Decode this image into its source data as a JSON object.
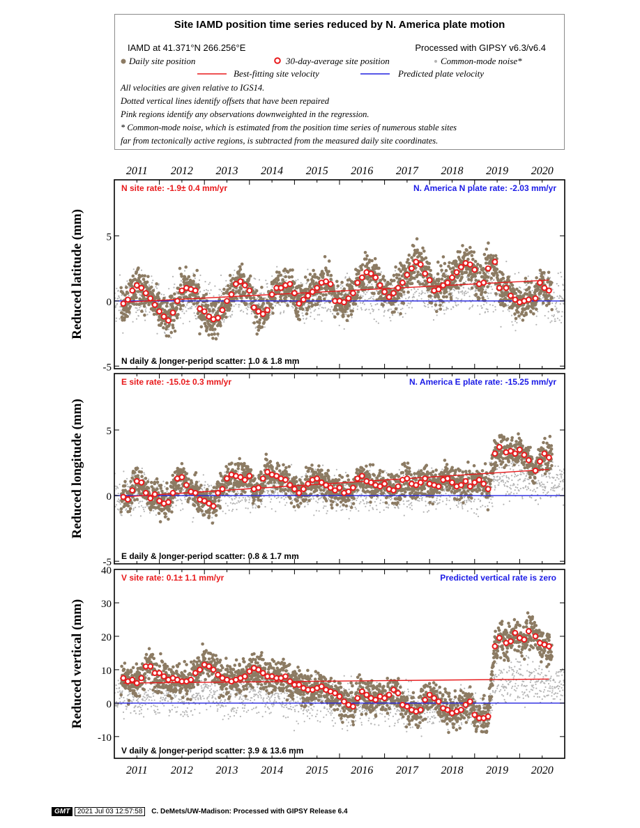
{
  "legend": {
    "title": "Site IAMD position time series reduced by N. America plate motion",
    "site_line": "IAMD at 41.371°N 266.256°E",
    "processed": "Processed with GIPSY v6.3/v6.4",
    "items": {
      "daily": "Daily site position",
      "avg": "30-day-average site position",
      "cm": "Common-mode noise*",
      "best": "Best-fitting site velocity",
      "pred": "Predicted plate velocity"
    },
    "notes": [
      "All velocities are given relative to IGS14.",
      "Dotted vertical lines identify offsets that have been repaired",
      "Pink regions identify any observations downweighted in the regression.",
      "* Common-mode noise, which is estimated from the position time series of numerous stable sites",
      "far from tectonically active regions, is subtracted from the measured daily site coordinates."
    ]
  },
  "footer": {
    "logo": "GMT",
    "timestamp": "2021 Jul 03 12:57:58",
    "credit": "C. DeMets/UW-Madison: Processed with GIPSY Release 6.4"
  },
  "colors": {
    "daily": "#8c7b63",
    "average": "#e8191b",
    "commonmode": "#b4b4b4",
    "best": "#e8191b",
    "predicted": "#2020e0",
    "rate_label": "#e8191b",
    "plate_label": "#1a1ae6"
  },
  "chart_data": [
    {
      "type": "scatter",
      "component": "N",
      "ylabel": "Reduced latitude (mm)",
      "site_rate": "N site rate:  -1.9± 0.4 mm/yr",
      "plate_rate": "N. America N plate rate: -2.03 mm/yr",
      "scatter": "N daily & longer-period scatter:   1.0 &   1.8 mm",
      "x_ticks": [
        "2011",
        "2012",
        "2013",
        "2014",
        "2015",
        "2016",
        "2017",
        "2018",
        "2019",
        "2020"
      ],
      "xlim": [
        2010.5,
        2020.5
      ],
      "ylim": [
        -5.2,
        9.3
      ],
      "y_ticks": [
        -5,
        0,
        5
      ],
      "y_tick_labels": [
        "-5",
        "0",
        "5"
      ],
      "best_fit": {
        "x": [
          2010.7,
          2020.15
        ],
        "y": [
          -0.1,
          1.6
        ]
      },
      "predicted": {
        "y": 0
      },
      "averages": {
        "x": [
          2010.7,
          2010.8,
          2010.9,
          2011.0,
          2011.1,
          2011.2,
          2011.3,
          2011.4,
          2011.5,
          2011.6,
          2011.7,
          2011.8,
          2011.9,
          2012.0,
          2012.1,
          2012.2,
          2012.3,
          2012.4,
          2012.5,
          2012.6,
          2012.7,
          2012.8,
          2012.9,
          2013.0,
          2013.1,
          2013.2,
          2013.3,
          2013.4,
          2013.5,
          2013.6,
          2013.7,
          2013.8,
          2013.9,
          2014.0,
          2014.1,
          2014.2,
          2014.3,
          2014.4,
          2014.5,
          2014.6,
          2014.7,
          2014.8,
          2014.9,
          2015.0,
          2015.1,
          2015.2,
          2015.3,
          2015.4,
          2015.5,
          2015.6,
          2015.7,
          2015.8,
          2015.9,
          2016.0,
          2016.1,
          2016.2,
          2016.3,
          2016.4,
          2016.5,
          2016.6,
          2016.7,
          2016.8,
          2016.9,
          2017.0,
          2017.1,
          2017.2,
          2017.3,
          2017.4,
          2017.5,
          2017.6,
          2017.7,
          2017.8,
          2017.9,
          2018.0,
          2018.1,
          2018.2,
          2018.3,
          2018.4,
          2018.5,
          2018.6,
          2018.7,
          2018.8,
          2018.95,
          2019.05,
          2019.2,
          2019.3,
          2019.4,
          2019.5,
          2019.6,
          2019.7,
          2019.85,
          2019.95,
          2020.05,
          2020.15
        ],
        "y": [
          -0.2,
          0.1,
          0.8,
          1.2,
          1.0,
          0.6,
          0.2,
          -0.3,
          -0.8,
          -1.2,
          -1.5,
          -0.9,
          0.0,
          0.8,
          1.0,
          0.9,
          0.8,
          -0.6,
          -0.8,
          -1.2,
          -1.4,
          -1.3,
          -0.7,
          0.0,
          0.5,
          1.3,
          1.5,
          1.2,
          0.8,
          -0.5,
          -0.8,
          -1.0,
          -0.7,
          0.5,
          1.0,
          1.0,
          1.2,
          1.3,
          0.6,
          -0.2,
          0.1,
          0.4,
          0.7,
          1.0,
          1.4,
          1.5,
          1.3,
          0.0,
          0.0,
          -0.1,
          0.2,
          0.6,
          1.4,
          1.8,
          2.2,
          2.1,
          1.8,
          1.2,
          0.7,
          0.3,
          0.6,
          1.0,
          1.4,
          2.0,
          2.5,
          3.0,
          2.8,
          2.1,
          1.6,
          0.8,
          0.9,
          1.2,
          1.4,
          1.8,
          2.2,
          2.6,
          2.9,
          2.8,
          2.4,
          1.3,
          1.4,
          2.5,
          3.0,
          1.0,
          1.0,
          0.4,
          0.1,
          -0.1,
          0.0,
          0.1,
          0.2,
          1.4,
          1.0,
          0.8
        ]
      }
    },
    {
      "type": "scatter",
      "component": "E",
      "ylabel": "Reduced longitude (mm)",
      "site_rate": "E site rate:  -15.0± 0.3 mm/yr",
      "plate_rate": "N. America E plate rate: -15.25 mm/yr",
      "scatter": "E daily & longer-period scatter:   0.8 &   1.7 mm",
      "x_ticks": [
        "2011",
        "2012",
        "2013",
        "2014",
        "2015",
        "2016",
        "2017",
        "2018",
        "2019",
        "2020"
      ],
      "xlim": [
        2010.5,
        2020.5
      ],
      "ylim": [
        -5.2,
        9.3
      ],
      "y_ticks": [
        -5,
        0,
        5
      ],
      "y_tick_labels": [
        "-5",
        "0",
        "5"
      ],
      "best_fit": {
        "x": [
          2010.7,
          2020.15
        ],
        "y": [
          -0.1,
          2.0
        ]
      },
      "predicted": {
        "y": 0
      },
      "averages": {
        "x": [
          2010.7,
          2010.8,
          2010.9,
          2011.0,
          2011.1,
          2011.2,
          2011.3,
          2011.4,
          2011.5,
          2011.6,
          2011.7,
          2011.8,
          2011.9,
          2012.0,
          2012.1,
          2012.2,
          2012.3,
          2012.4,
          2012.5,
          2012.6,
          2012.7,
          2012.8,
          2012.9,
          2013.0,
          2013.1,
          2013.2,
          2013.3,
          2013.4,
          2013.5,
          2013.6,
          2013.7,
          2013.8,
          2013.9,
          2014.0,
          2014.1,
          2014.2,
          2014.3,
          2014.4,
          2014.5,
          2014.6,
          2014.7,
          2014.8,
          2014.9,
          2015.0,
          2015.1,
          2015.2,
          2015.3,
          2015.4,
          2015.5,
          2015.6,
          2015.7,
          2015.8,
          2015.9,
          2016.0,
          2016.1,
          2016.2,
          2016.3,
          2016.4,
          2016.5,
          2016.6,
          2016.7,
          2016.8,
          2016.9,
          2017.0,
          2017.1,
          2017.2,
          2017.3,
          2017.4,
          2017.5,
          2017.6,
          2017.7,
          2017.8,
          2017.9,
          2018.0,
          2018.1,
          2018.2,
          2018.3,
          2018.4,
          2018.5,
          2018.6,
          2018.7,
          2018.8,
          2018.95,
          2019.05,
          2019.2,
          2019.3,
          2019.4,
          2019.5,
          2019.6,
          2019.7,
          2019.85,
          2019.95,
          2020.05,
          2020.15
        ],
        "y": [
          -0.1,
          -0.3,
          0.4,
          1.1,
          1.0,
          0.2,
          -0.2,
          0.1,
          -0.4,
          -0.6,
          -0.5,
          0.2,
          1.3,
          1.4,
          0.8,
          0.3,
          0.2,
          -0.3,
          -0.4,
          -0.6,
          -0.8,
          0.2,
          0.5,
          1.3,
          1.6,
          1.5,
          1.4,
          1.2,
          1.5,
          0.5,
          0.6,
          1.3,
          1.8,
          1.6,
          1.5,
          1.3,
          1.2,
          0.8,
          0.5,
          0.2,
          0.5,
          0.9,
          1.2,
          1.3,
          1.0,
          0.8,
          0.6,
          0.4,
          0.6,
          0.2,
          0.3,
          0.6,
          1.3,
          1.5,
          1.1,
          1.0,
          0.8,
          0.7,
          0.9,
          0.5,
          0.4,
          0.7,
          1.2,
          1.3,
          0.9,
          0.8,
          1.0,
          1.3,
          0.9,
          0.8,
          0.7,
          1.2,
          1.3,
          1.0,
          0.7,
          0.8,
          1.1,
          0.7,
          1.0,
          1.2,
          0.9,
          0.5,
          3.2,
          3.7,
          3.3,
          3.4,
          3.2,
          3.5,
          3.1,
          2.7,
          1.9,
          2.6,
          3.2,
          2.9
        ]
      }
    },
    {
      "type": "scatter",
      "component": "V",
      "ylabel": "Reduced vertical (mm)",
      "site_rate": "V site rate:   0.1± 1.1 mm/yr",
      "plate_rate": "Predicted vertical rate is zero",
      "scatter": "V daily & longer-period scatter:   3.9 &  13.6 mm",
      "x_ticks": [
        "2011",
        "2012",
        "2013",
        "2014",
        "2015",
        "2016",
        "2017",
        "2018",
        "2019",
        "2020"
      ],
      "xlim": [
        2010.5,
        2020.5
      ],
      "ylim": [
        -16.5,
        40
      ],
      "y_ticks": [
        -10,
        0,
        10,
        20,
        30,
        40
      ],
      "y_tick_labels": [
        "-10",
        "0",
        "10",
        "20",
        "30",
        "40"
      ],
      "best_fit": {
        "x": [
          2010.7,
          2020.15
        ],
        "y": [
          6.0,
          7.2
        ]
      },
      "predicted": {
        "y": 0
      },
      "averages": {
        "x": [
          2010.7,
          2010.8,
          2010.9,
          2011.0,
          2011.1,
          2011.2,
          2011.3,
          2011.4,
          2011.5,
          2011.6,
          2011.7,
          2011.8,
          2011.9,
          2012.0,
          2012.1,
          2012.2,
          2012.3,
          2012.4,
          2012.5,
          2012.6,
          2012.7,
          2012.8,
          2012.9,
          2013.0,
          2013.1,
          2013.2,
          2013.3,
          2013.4,
          2013.5,
          2013.6,
          2013.7,
          2013.8,
          2013.9,
          2014.0,
          2014.1,
          2014.2,
          2014.3,
          2014.4,
          2014.5,
          2014.6,
          2014.7,
          2014.8,
          2014.9,
          2015.0,
          2015.1,
          2015.2,
          2015.3,
          2015.4,
          2015.5,
          2015.6,
          2015.7,
          2015.8,
          2015.9,
          2016.0,
          2016.1,
          2016.2,
          2016.3,
          2016.4,
          2016.5,
          2016.6,
          2016.7,
          2016.8,
          2016.9,
          2017.0,
          2017.1,
          2017.2,
          2017.3,
          2017.4,
          2017.5,
          2017.6,
          2017.7,
          2017.8,
          2017.9,
          2018.0,
          2018.1,
          2018.2,
          2018.3,
          2018.4,
          2018.5,
          2018.6,
          2018.7,
          2018.8,
          2018.95,
          2019.05,
          2019.2,
          2019.3,
          2019.4,
          2019.5,
          2019.6,
          2019.7,
          2019.85,
          2019.95,
          2020.05,
          2020.15
        ],
        "y": [
          7.5,
          6.5,
          7.0,
          6.0,
          7.5,
          11.0,
          11.0,
          9.0,
          9.0,
          8.0,
          7.0,
          7.5,
          7.0,
          6.5,
          6.5,
          7.0,
          9.0,
          10.0,
          11.5,
          11.0,
          10.0,
          8.5,
          7.5,
          7.0,
          6.5,
          7.0,
          7.5,
          8.0,
          9.5,
          10.5,
          10.0,
          9.0,
          8.0,
          8.0,
          7.5,
          7.5,
          8.0,
          6.5,
          5.5,
          5.5,
          4.5,
          4.0,
          4.0,
          4.5,
          5.0,
          4.0,
          3.5,
          3.0,
          2.0,
          0.5,
          -0.5,
          -1.0,
          1.5,
          3.5,
          2.5,
          1.5,
          1.0,
          2.0,
          1.5,
          2.5,
          4.0,
          3.0,
          -0.5,
          -1.0,
          -2.0,
          -2.5,
          -2.0,
          1.0,
          2.5,
          1.5,
          0.5,
          -1.5,
          -2.0,
          -3.0,
          -2.5,
          -2.0,
          -0.5,
          0.5,
          -3.5,
          -4.5,
          -4.5,
          -4.0,
          17.0,
          19.5,
          18.0,
          18.5,
          21.0,
          19.5,
          19.0,
          21.5,
          20.0,
          18.0,
          17.5,
          17.0
        ]
      }
    }
  ]
}
